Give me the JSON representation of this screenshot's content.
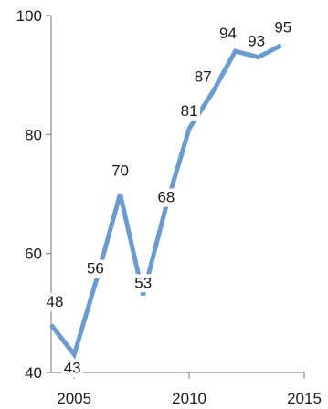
{
  "chart_data": {
    "type": "line",
    "title": "",
    "xlabel": "",
    "ylabel": "",
    "x": [
      2004,
      2005,
      2006,
      2007,
      2008,
      2009,
      2010,
      2011,
      2012,
      2013,
      2014
    ],
    "series": [
      {
        "values": [
          48,
          43,
          56,
          70,
          53,
          68,
          81,
          87,
          94,
          93,
          95
        ],
        "color": "#6a9bd1"
      }
    ],
    "xlim": [
      2004,
      2015
    ],
    "ylim": [
      40,
      100
    ],
    "x_ticks": [
      2005,
      2010,
      2015
    ],
    "x_tick_labels": [
      "2005",
      "2010",
      "2015"
    ],
    "y_ticks": [
      40,
      60,
      80,
      100
    ],
    "y_tick_labels": [
      "40",
      "60",
      "80",
      "100"
    ],
    "data_labels": [
      "48",
      "43",
      "56",
      "70",
      "53",
      "68",
      "81",
      "87",
      "94",
      "93",
      "95"
    ],
    "grid": false,
    "legend": "none",
    "axis_color": "#8c8c8c"
  }
}
